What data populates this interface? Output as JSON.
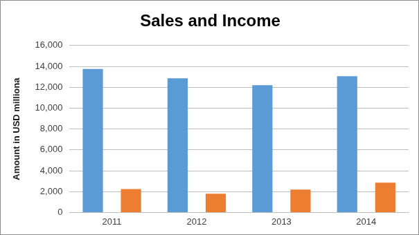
{
  "chart_data": {
    "type": "bar",
    "title": "Sales and Income",
    "y_label": "Amount in USD milliona",
    "categories": [
      "2011",
      "2012",
      "2013",
      "2014"
    ],
    "series": [
      {
        "color": "#5b9bd5",
        "values": [
          13750,
          12850,
          12200,
          13050
        ]
      },
      {
        "color": "#ed7d31",
        "values": [
          2250,
          1800,
          2200,
          2850
        ]
      }
    ],
    "ylim": [
      0,
      16000
    ],
    "yticks": [
      0,
      {
        "value": 2000,
        "label": "2,000"
      },
      {
        "value": 4000,
        "label": "4,000"
      },
      {
        "value": 6000,
        "label": "6,000"
      },
      {
        "value": 8000,
        "label": "8,000"
      },
      {
        "value": 10000,
        "label": "10,000"
      },
      {
        "value": 12000,
        "label": "12,000"
      },
      {
        "value": 14000,
        "label": "14,000"
      },
      {
        "value": 16000,
        "label": "16,000"
      }
    ],
    "grid": true
  }
}
